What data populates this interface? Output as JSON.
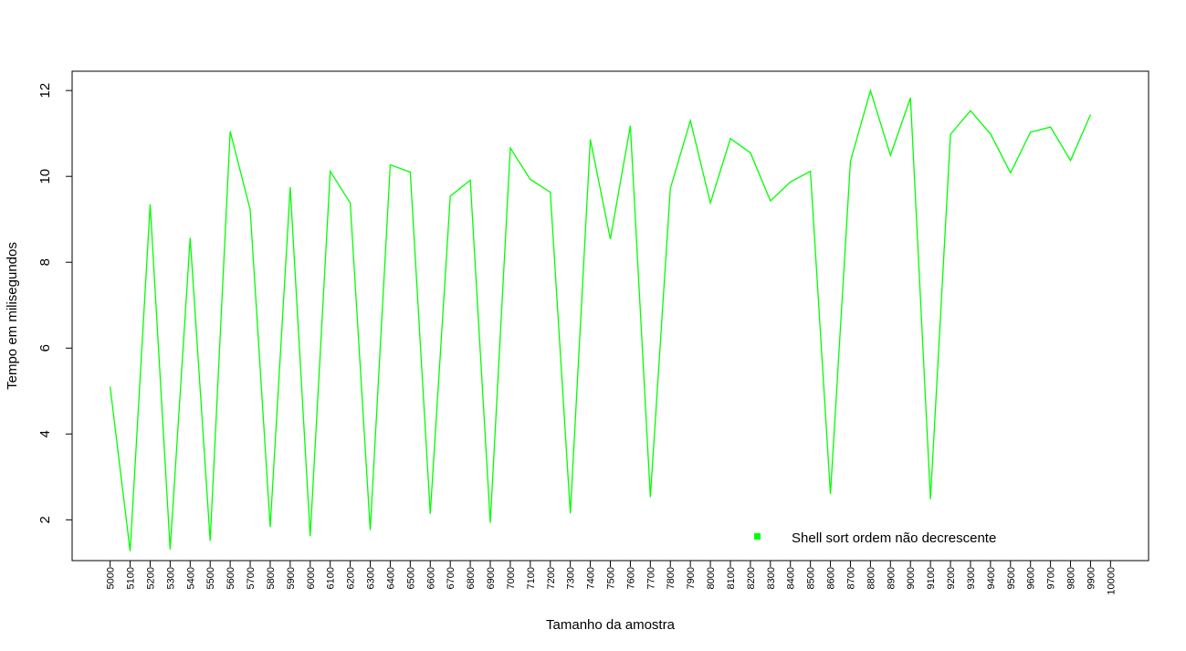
{
  "chart_data": {
    "type": "line",
    "title": "",
    "xlabel": "Tamanho da amostra",
    "ylabel": "Tempo em milisegundos",
    "x": [
      5000,
      5100,
      5200,
      5300,
      5400,
      5500,
      5600,
      5700,
      5800,
      5900,
      6000,
      6100,
      6200,
      6300,
      6400,
      6500,
      6600,
      6700,
      6800,
      6900,
      7000,
      7100,
      7200,
      7300,
      7400,
      7500,
      7600,
      7700,
      7800,
      7900,
      8000,
      8100,
      8200,
      8300,
      8400,
      8500,
      8600,
      8700,
      8800,
      8900,
      9000,
      9100,
      9200,
      9300,
      9400,
      9500,
      9600,
      9700,
      9800,
      9900
    ],
    "x_ticks": [
      5000,
      5100,
      5200,
      5300,
      5400,
      5500,
      5600,
      5700,
      5800,
      5900,
      6000,
      6100,
      6200,
      6300,
      6400,
      6500,
      6600,
      6700,
      6800,
      6900,
      7000,
      7100,
      7200,
      7300,
      7400,
      7500,
      7600,
      7700,
      7800,
      7900,
      8000,
      8100,
      8200,
      8300,
      8400,
      8500,
      8600,
      8700,
      8800,
      8900,
      9000,
      9100,
      9200,
      9300,
      9400,
      9500,
      9600,
      9700,
      9800,
      9900,
      10000
    ],
    "y_ticks": [
      2,
      4,
      6,
      8,
      10,
      12
    ],
    "xlim": [
      4810,
      10190
    ],
    "ylim": [
      1.05,
      12.45
    ],
    "series": [
      {
        "name": "Shell sort ordem não decrescente",
        "color": "#00ff00",
        "values": [
          5.1,
          1.27,
          9.35,
          1.31,
          8.57,
          1.51,
          11.05,
          9.22,
          1.83,
          9.75,
          1.62,
          10.12,
          9.38,
          1.76,
          10.27,
          10.1,
          2.14,
          9.54,
          9.91,
          1.93,
          10.66,
          9.93,
          9.63,
          2.15,
          10.86,
          8.54,
          11.18,
          2.53,
          9.72,
          11.3,
          9.38,
          10.88,
          10.55,
          9.43,
          9.87,
          10.12,
          2.6,
          10.35,
          12.0,
          10.49,
          11.83,
          2.48,
          10.98,
          11.53,
          10.99,
          10.08,
          11.03,
          11.15,
          10.37,
          11.44
        ]
      }
    ],
    "legend_position": "bottom-right",
    "grid": false
  }
}
